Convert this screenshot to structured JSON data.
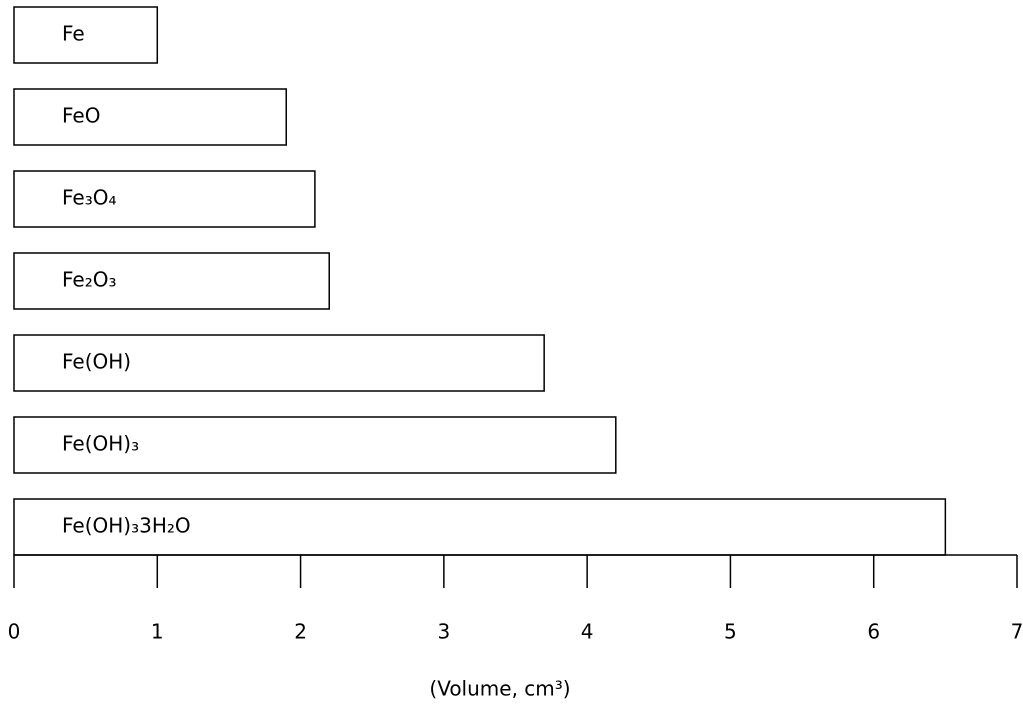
{
  "chart_data": {
    "type": "bar",
    "orientation": "horizontal",
    "categories": [
      "Fe",
      "FeO",
      "Fe₃O₄",
      "Fe₂O₃",
      "Fe(OH)",
      "Fe(OH)₃",
      "Fe(OH)₃3H₂O"
    ],
    "values": [
      1,
      1.9,
      2.1,
      2.2,
      3.7,
      4.2,
      6.5
    ],
    "color": "#ffffff",
    "xlabel": "(Volume, cm³)",
    "xlim": [
      0,
      7
    ],
    "xticks": [
      0,
      1,
      2,
      3,
      4,
      5,
      6,
      7
    ]
  }
}
